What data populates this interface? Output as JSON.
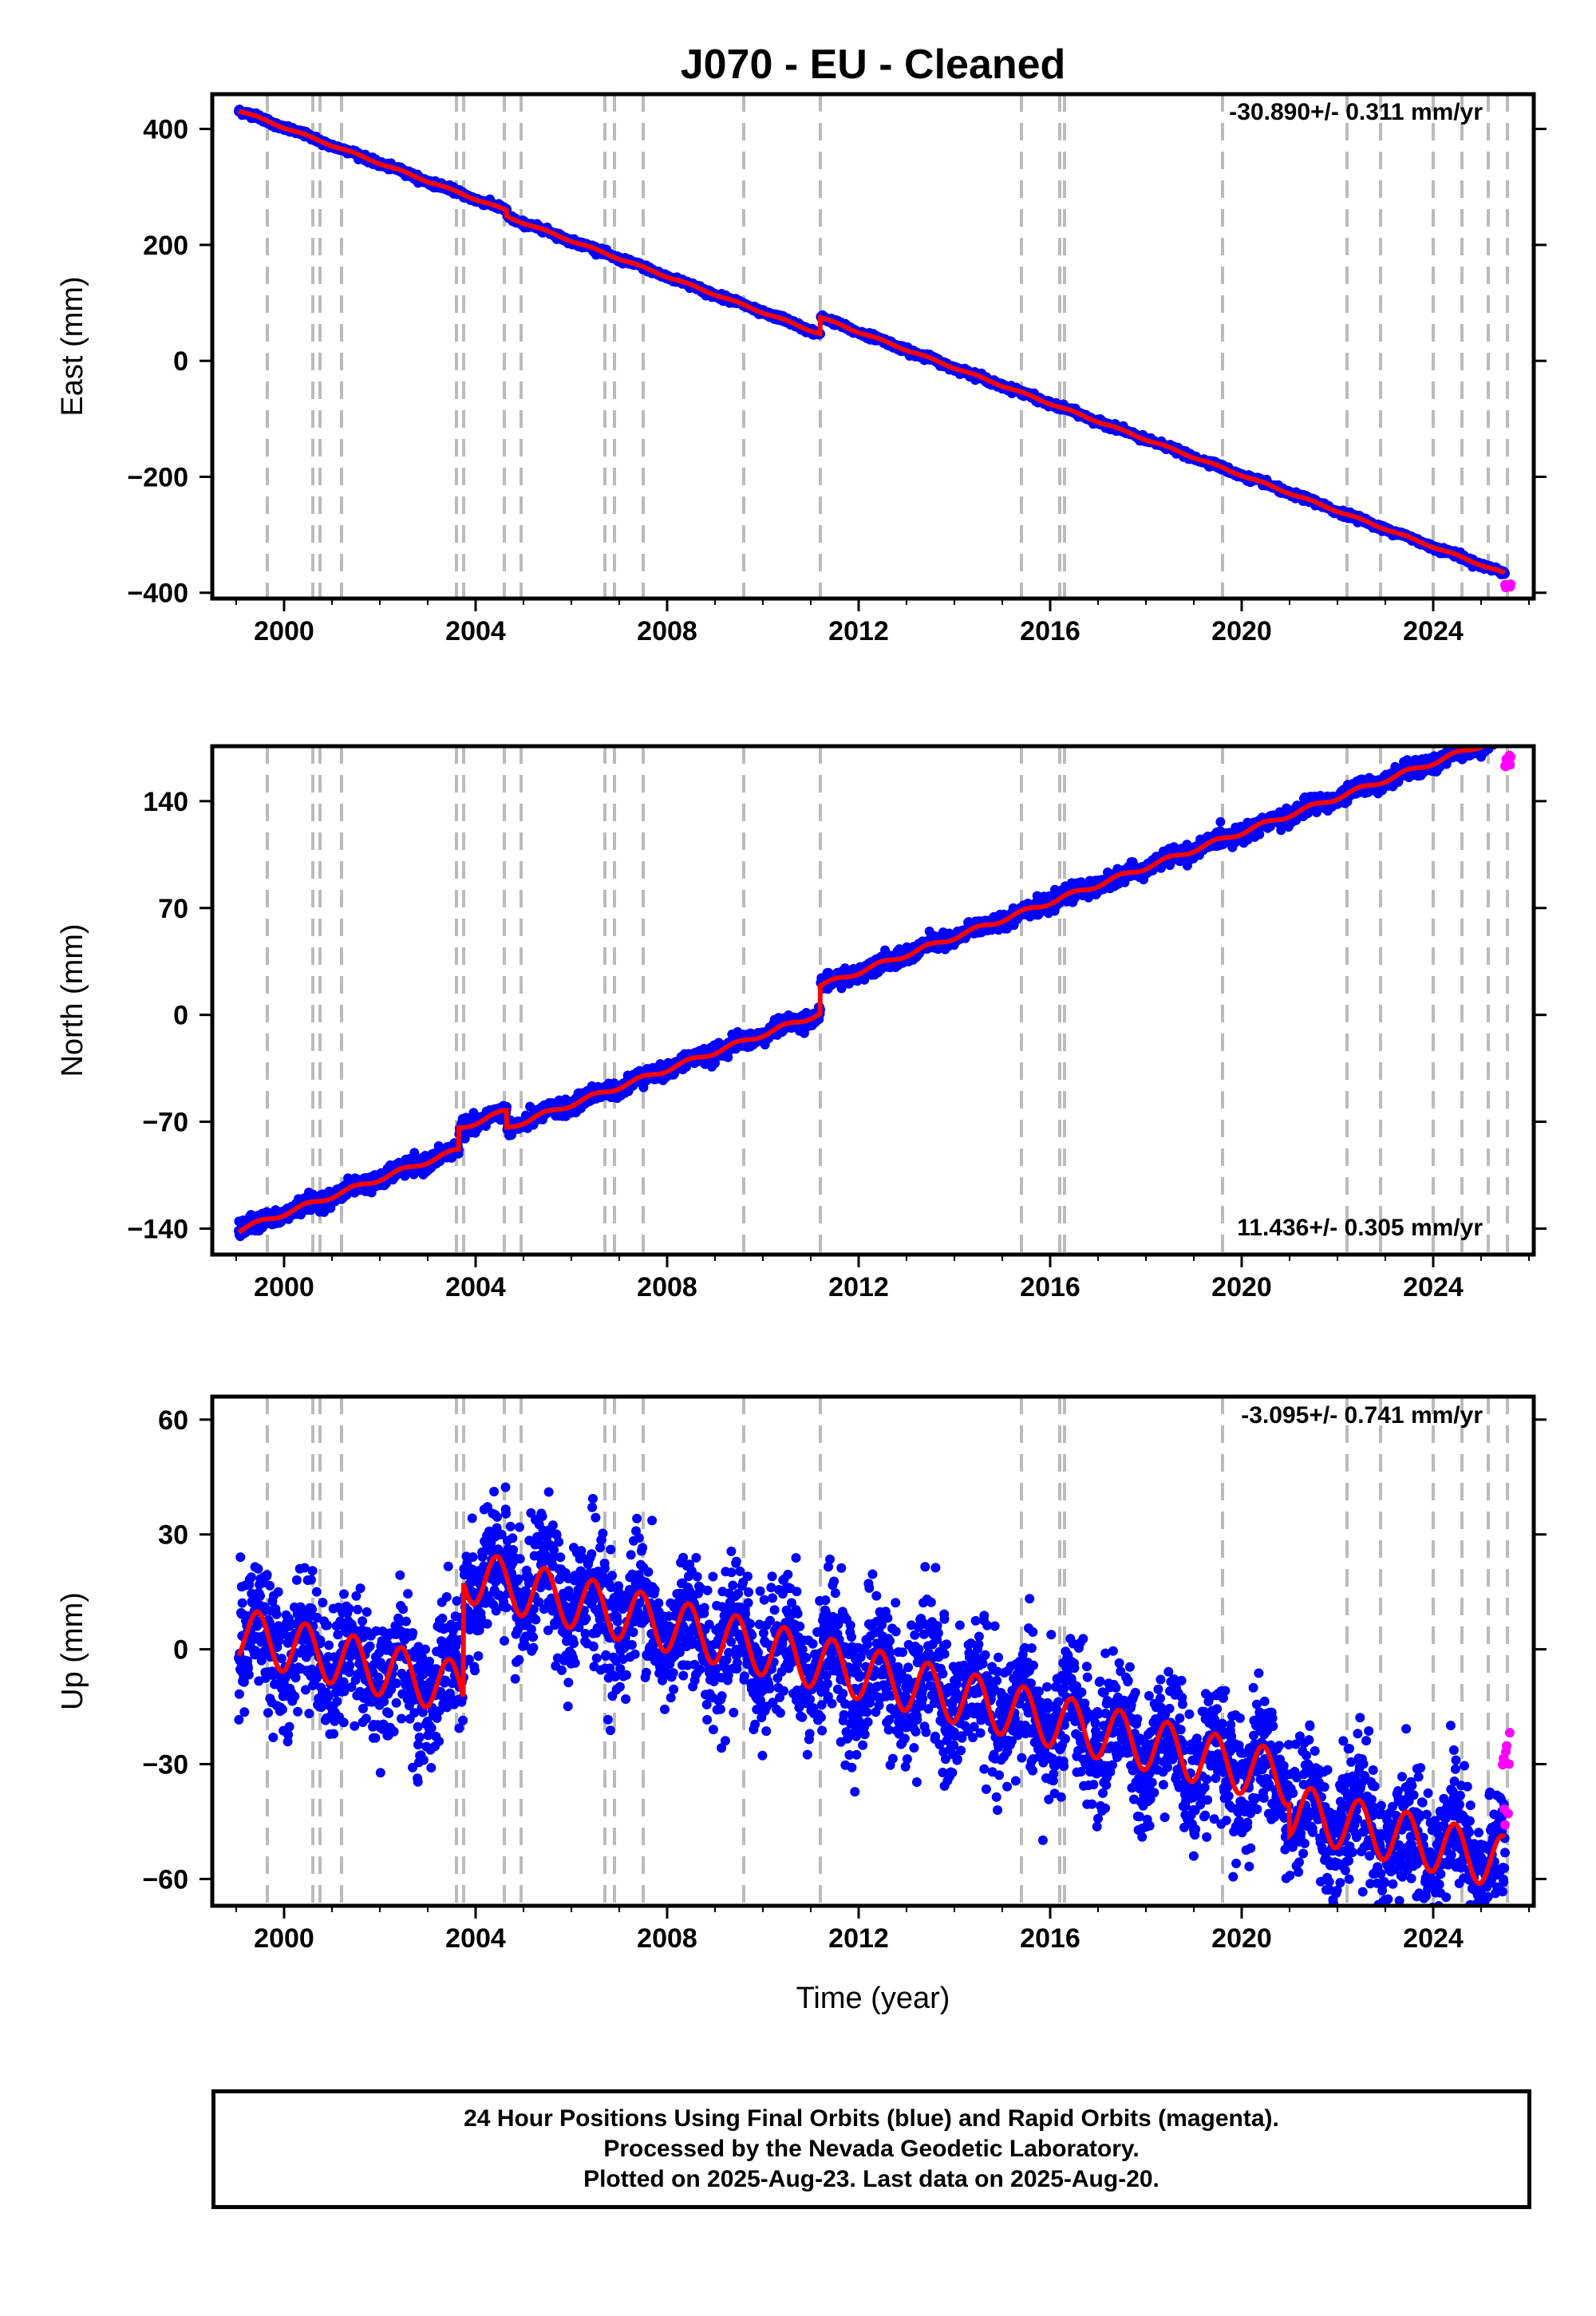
{
  "title": "J070  - EU - Cleaned",
  "xlabel": "Time (year)",
  "footer": {
    "line1": "24 Hour Positions Using Final Orbits (blue) and Rapid Orbits (magenta).",
    "line2": "Processed by the Nevada Geodetic Laboratory.",
    "line3": "Plotted on 2025-Aug-23. Last data on 2025-Aug-20."
  },
  "colors": {
    "final": "#0000ff",
    "rapid": "#ff00ff",
    "model": "#ff0000",
    "event": "#bbbbbb"
  },
  "chart_data": [
    {
      "type": "scatter",
      "component": "East",
      "ylabel": "East (mm)",
      "rate_label": "-30.890+/- 0.311 mm/yr",
      "xlim": [
        1998.5,
        2026.1
      ],
      "ylim": [
        -410,
        460
      ],
      "yticks": [
        400,
        200,
        0,
        -200,
        -400
      ],
      "ytick_labels": [
        "400",
        "200",
        "0",
        "−200",
        "−400"
      ],
      "xticks": [
        2000,
        2004,
        2008,
        2012,
        2016,
        2020,
        2024
      ],
      "events": [
        1999.65,
        2000.6,
        2000.75,
        2001.2,
        2003.6,
        2003.75,
        2004.6,
        2004.95,
        2006.7,
        2006.9,
        2007.5,
        2009.6,
        2011.2,
        2015.4,
        2016.2,
        2016.3,
        2019.6,
        2022.2,
        2022.9,
        2024.0,
        2024.6,
        2025.15,
        2025.55
      ],
      "trend": {
        "start": 1999.05,
        "end": 2025.5,
        "y0": 432,
        "rate": -30.89,
        "offsets": [
          [
            2004.65,
            -10
          ],
          [
            2011.2,
            28
          ]
        ],
        "annual": 1.5,
        "noise": 2.5,
        "outliers": 0,
        "outlier_amp": 0
      },
      "final": {
        "start": 1999.05,
        "end": 2025.5,
        "gaps": []
      },
      "rapid": {
        "start": 2025.5,
        "end": 2025.62,
        "y": -388,
        "spread": 3
      }
    },
    {
      "type": "scatter",
      "component": "North",
      "ylabel": "North (mm)",
      "rate_label": "11.436+/- 0.305 mm/yr",
      "xlim": [
        1998.5,
        2026.1
      ],
      "ylim": [
        -157,
        176
      ],
      "yticks": [
        140,
        70,
        0,
        -70,
        -140
      ],
      "ytick_labels": [
        "140",
        "70",
        "0",
        "−70",
        "−140"
      ],
      "xticks": [
        2000,
        2004,
        2008,
        2012,
        2016,
        2020,
        2024
      ],
      "events": [
        1999.65,
        2000.6,
        2000.75,
        2001.2,
        2003.6,
        2003.75,
        2004.6,
        2004.95,
        2006.7,
        2006.9,
        2007.5,
        2009.6,
        2011.2,
        2015.4,
        2016.2,
        2016.3,
        2019.6,
        2022.2,
        2022.9,
        2024.0,
        2024.6,
        2025.15,
        2025.55
      ],
      "trend": {
        "start": 1999.05,
        "end": 2025.5,
        "y0": -141,
        "rate": 11.436,
        "offsets": [
          [
            2003.65,
            14
          ],
          [
            2004.65,
            -11
          ],
          [
            2011.2,
            18
          ]
        ],
        "annual": 1.5,
        "noise": 2.5,
        "outliers": 0,
        "outlier_amp": 0
      },
      "final": {
        "start": 1999.05,
        "end": 2025.5,
        "gaps": []
      },
      "rapid": {
        "start": 2025.5,
        "end": 2025.62,
        "y": 166,
        "spread": 4
      }
    },
    {
      "type": "scatter",
      "component": "Up",
      "ylabel": "Up (mm)",
      "rate_label": "-3.095+/- 0.741 mm/yr",
      "xlim": [
        1998.5,
        2026.1
      ],
      "ylim": [
        -67,
        66
      ],
      "yticks": [
        60,
        30,
        0,
        -30,
        -60
      ],
      "ytick_labels": [
        "60",
        "30",
        "0",
        "−30",
        "−60"
      ],
      "xticks": [
        2000,
        2004,
        2008,
        2012,
        2016,
        2020,
        2024
      ],
      "events": [
        1999.65,
        2000.6,
        2000.75,
        2001.2,
        2003.6,
        2003.75,
        2004.6,
        2004.95,
        2006.7,
        2006.9,
        2007.5,
        2009.6,
        2011.2,
        2015.4,
        2016.2,
        2016.3,
        2019.6,
        2022.2,
        2022.9,
        2024.0,
        2024.6,
        2025.15,
        2025.55
      ],
      "trend": {
        "start": 1999.05,
        "end": 2025.5,
        "y0": 4,
        "rate": -3.095,
        "offsets": [
          [
            2003.75,
            30
          ],
          [
            2021.0,
            -8
          ]
        ],
        "annual": 7,
        "noise": 8,
        "outliers": 120,
        "outlier_amp": 22
      },
      "final": {
        "start": 1999.05,
        "end": 2025.5,
        "gaps": []
      },
      "rapid": {
        "start": 2025.45,
        "end": 2025.6,
        "y": -30,
        "spread": 16
      }
    }
  ]
}
